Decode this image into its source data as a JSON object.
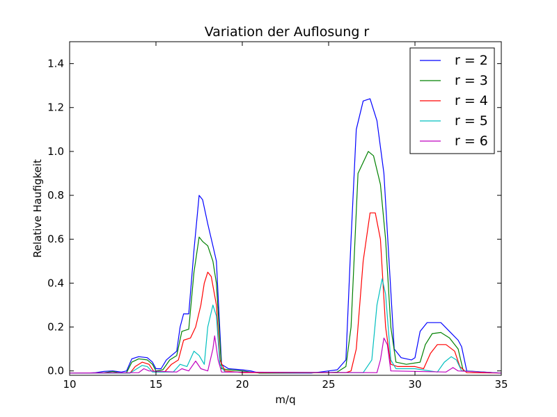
{
  "chart_data": {
    "type": "line",
    "title": "Variation der Auflosung r",
    "xlabel": "m/q",
    "ylabel": "Relative Haufigkeit",
    "xlim": [
      10,
      35
    ],
    "ylim": [
      -0.02,
      1.5
    ],
    "x_ticks": [
      10,
      15,
      20,
      25,
      30,
      35
    ],
    "y_ticks": [
      0.0,
      0.2,
      0.4,
      0.6,
      0.8,
      1.0,
      1.2,
      1.4
    ],
    "y_tick_labels": [
      "0.0",
      "0.2",
      "0.4",
      "0.6",
      "0.8",
      "1.0",
      "1.2",
      "1.4"
    ],
    "grid": false,
    "legend_position": "top-right",
    "series": [
      {
        "name": "r = 2",
        "color": "#0000ff",
        "points": [
          [
            10,
            -0.01
          ],
          [
            11,
            -0.01
          ],
          [
            11.5,
            -0.008
          ],
          [
            12,
            -0.002
          ],
          [
            12.5,
            0.0
          ],
          [
            13,
            -0.005
          ],
          [
            13.3,
            0.0
          ],
          [
            13.6,
            0.055
          ],
          [
            14,
            0.065
          ],
          [
            14.5,
            0.06
          ],
          [
            14.8,
            0.04
          ],
          [
            15,
            0.01
          ],
          [
            15.3,
            0.01
          ],
          [
            15.6,
            0.05
          ],
          [
            15.9,
            0.07
          ],
          [
            16.2,
            0.09
          ],
          [
            16.4,
            0.2
          ],
          [
            16.6,
            0.26
          ],
          [
            16.9,
            0.26
          ],
          [
            17.2,
            0.55
          ],
          [
            17.5,
            0.8
          ],
          [
            17.7,
            0.78
          ],
          [
            18.0,
            0.67
          ],
          [
            18.3,
            0.57
          ],
          [
            18.5,
            0.5
          ],
          [
            18.8,
            0.03
          ],
          [
            19.2,
            0.01
          ],
          [
            20,
            0.005
          ],
          [
            20.5,
            0.0
          ],
          [
            21,
            -0.01
          ],
          [
            24,
            -0.01
          ],
          [
            25,
            0.0
          ],
          [
            25.5,
            0.005
          ],
          [
            26,
            0.05
          ],
          [
            26.3,
            0.6
          ],
          [
            26.6,
            1.1
          ],
          [
            27,
            1.23
          ],
          [
            27.4,
            1.24
          ],
          [
            27.8,
            1.14
          ],
          [
            28.2,
            0.9
          ],
          [
            28.5,
            0.5
          ],
          [
            28.8,
            0.1
          ],
          [
            29.2,
            0.06
          ],
          [
            29.8,
            0.05
          ],
          [
            30,
            0.06
          ],
          [
            30.3,
            0.18
          ],
          [
            30.7,
            0.22
          ],
          [
            31.5,
            0.22
          ],
          [
            32,
            0.18
          ],
          [
            32.5,
            0.14
          ],
          [
            32.7,
            0.11
          ],
          [
            33,
            0.0
          ],
          [
            35,
            -0.01
          ]
        ]
      },
      {
        "name": "r = 3",
        "color": "#008000",
        "points": [
          [
            10,
            -0.01
          ],
          [
            11,
            -0.01
          ],
          [
            12,
            -0.008
          ],
          [
            12.5,
            -0.003
          ],
          [
            13,
            -0.01
          ],
          [
            13.3,
            -0.008
          ],
          [
            13.6,
            0.04
          ],
          [
            14,
            0.055
          ],
          [
            14.5,
            0.05
          ],
          [
            14.8,
            0.03
          ],
          [
            15.0,
            0.0
          ],
          [
            15.4,
            0.005
          ],
          [
            15.8,
            0.05
          ],
          [
            16.2,
            0.07
          ],
          [
            16.5,
            0.18
          ],
          [
            16.9,
            0.19
          ],
          [
            17.2,
            0.45
          ],
          [
            17.5,
            0.61
          ],
          [
            17.7,
            0.59
          ],
          [
            18.0,
            0.57
          ],
          [
            18.3,
            0.5
          ],
          [
            18.5,
            0.4
          ],
          [
            18.8,
            0.01
          ],
          [
            19.2,
            0.005
          ],
          [
            20,
            0.0
          ],
          [
            21,
            -0.01
          ],
          [
            25,
            -0.008
          ],
          [
            25.5,
            -0.005
          ],
          [
            26.0,
            0.02
          ],
          [
            26.3,
            0.2
          ],
          [
            26.7,
            0.9
          ],
          [
            27.3,
            1.0
          ],
          [
            27.6,
            0.98
          ],
          [
            28.0,
            0.85
          ],
          [
            28.3,
            0.6
          ],
          [
            28.6,
            0.2
          ],
          [
            28.9,
            0.04
          ],
          [
            29.5,
            0.03
          ],
          [
            30.3,
            0.04
          ],
          [
            30.6,
            0.12
          ],
          [
            31.0,
            0.17
          ],
          [
            31.5,
            0.175
          ],
          [
            32,
            0.15
          ],
          [
            32.5,
            0.1
          ],
          [
            32.8,
            0.0
          ],
          [
            35,
            -0.01
          ]
        ]
      },
      {
        "name": "r = 4",
        "color": "#ff0000",
        "points": [
          [
            10,
            -0.01
          ],
          [
            12,
            -0.01
          ],
          [
            13.5,
            -0.01
          ],
          [
            13.8,
            0.02
          ],
          [
            14.2,
            0.04
          ],
          [
            14.6,
            0.03
          ],
          [
            14.9,
            -0.005
          ],
          [
            15.5,
            -0.005
          ],
          [
            15.9,
            0.03
          ],
          [
            16.3,
            0.05
          ],
          [
            16.6,
            0.14
          ],
          [
            17.0,
            0.15
          ],
          [
            17.3,
            0.2
          ],
          [
            17.6,
            0.3
          ],
          [
            17.8,
            0.4
          ],
          [
            18.0,
            0.45
          ],
          [
            18.2,
            0.43
          ],
          [
            18.5,
            0.3
          ],
          [
            18.7,
            0.05
          ],
          [
            19.0,
            0.0
          ],
          [
            20,
            -0.008
          ],
          [
            26,
            -0.008
          ],
          [
            26.3,
            0.0
          ],
          [
            26.6,
            0.1
          ],
          [
            27.0,
            0.5
          ],
          [
            27.4,
            0.72
          ],
          [
            27.7,
            0.72
          ],
          [
            28.0,
            0.6
          ],
          [
            28.3,
            0.2
          ],
          [
            28.6,
            0.03
          ],
          [
            29.0,
            0.02
          ],
          [
            30.0,
            0.02
          ],
          [
            30.5,
            0.01
          ],
          [
            30.9,
            0.08
          ],
          [
            31.3,
            0.12
          ],
          [
            31.8,
            0.12
          ],
          [
            32.3,
            0.09
          ],
          [
            32.6,
            0.02
          ],
          [
            33,
            -0.008
          ],
          [
            35,
            -0.01
          ]
        ]
      },
      {
        "name": "r = 5",
        "color": "#00bfbf",
        "points": [
          [
            10,
            -0.01
          ],
          [
            13.5,
            -0.01
          ],
          [
            13.9,
            0.01
          ],
          [
            14.2,
            0.025
          ],
          [
            14.5,
            0.02
          ],
          [
            14.8,
            -0.005
          ],
          [
            16.0,
            -0.005
          ],
          [
            16.4,
            0.03
          ],
          [
            16.8,
            0.02
          ],
          [
            17.2,
            0.09
          ],
          [
            17.5,
            0.07
          ],
          [
            17.8,
            0.03
          ],
          [
            18.0,
            0.2
          ],
          [
            18.3,
            0.3
          ],
          [
            18.5,
            0.25
          ],
          [
            18.7,
            0.03
          ],
          [
            19.0,
            -0.005
          ],
          [
            27,
            -0.008
          ],
          [
            27.5,
            0.05
          ],
          [
            27.8,
            0.3
          ],
          [
            28.1,
            0.42
          ],
          [
            28.3,
            0.35
          ],
          [
            28.6,
            0.05
          ],
          [
            28.9,
            0.01
          ],
          [
            30.0,
            0.01
          ],
          [
            31.3,
            -0.005
          ],
          [
            31.7,
            0.04
          ],
          [
            32.1,
            0.065
          ],
          [
            32.4,
            0.05
          ],
          [
            32.7,
            0.0
          ],
          [
            35,
            -0.01
          ]
        ]
      },
      {
        "name": "r = 6",
        "color": "#bf00bf",
        "points": [
          [
            10,
            -0.01
          ],
          [
            14,
            -0.008
          ],
          [
            14.3,
            0.01
          ],
          [
            14.6,
            0.0
          ],
          [
            16.2,
            -0.005
          ],
          [
            16.5,
            0.01
          ],
          [
            16.9,
            0.0
          ],
          [
            17.3,
            0.045
          ],
          [
            17.6,
            0.01
          ],
          [
            18.0,
            0.0
          ],
          [
            18.3,
            0.1
          ],
          [
            18.4,
            0.16
          ],
          [
            18.6,
            0.05
          ],
          [
            18.8,
            -0.005
          ],
          [
            27.8,
            -0.008
          ],
          [
            28.0,
            0.05
          ],
          [
            28.2,
            0.15
          ],
          [
            28.4,
            0.12
          ],
          [
            28.6,
            0.0
          ],
          [
            31.8,
            -0.005
          ],
          [
            32.2,
            0.015
          ],
          [
            32.5,
            0.0
          ],
          [
            35,
            -0.01
          ]
        ]
      }
    ]
  }
}
